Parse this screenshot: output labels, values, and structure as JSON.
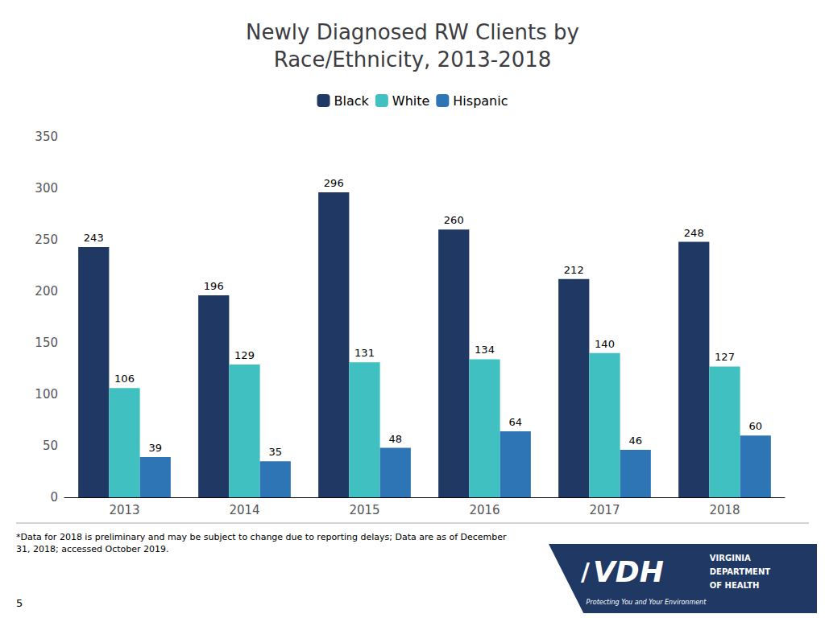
{
  "chart_data": {
    "type": "bar",
    "title": "Newly Diagnosed RW Clients by\nRace/Ethnicity, 2013-2018",
    "categories": [
      "2013",
      "2014",
      "2015",
      "2016",
      "2017",
      "2018"
    ],
    "series": [
      {
        "name": "Black",
        "color": "#1F3864",
        "values": [
          243,
          196,
          296,
          260,
          212,
          248
        ]
      },
      {
        "name": "White",
        "color": "#40C0C0",
        "values": [
          106,
          129,
          131,
          134,
          140,
          127
        ]
      },
      {
        "name": "Hispanic",
        "color": "#2E75B6",
        "values": [
          39,
          35,
          48,
          64,
          46,
          60
        ]
      }
    ],
    "ylim": [
      0,
      350
    ],
    "yticks": [
      0,
      50,
      100,
      150,
      200,
      250,
      300,
      350
    ],
    "grid": false,
    "legend": "top",
    "data_labels": true,
    "annotations": [
      "*Data for 2018 is preliminary and may be subject to change due to reporting delays; Data are as of December\n31, 2018; accessed October 2019.",
      "5",
      "/",
      "VDH",
      "VIRGINIA",
      "DEPARTMENT",
      "OF HEALTH",
      "Protecting You and Your Environment"
    ]
  }
}
